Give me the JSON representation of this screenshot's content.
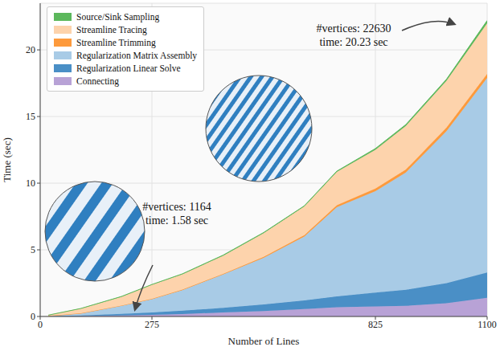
{
  "chart_data": {
    "type": "area",
    "stacked": true,
    "x_label": "Number of Lines",
    "y_label": "Time (sec)",
    "x": [
      20,
      100,
      200,
      275,
      350,
      450,
      550,
      650,
      730,
      825,
      900,
      1000,
      1100
    ],
    "xlim": [
      0,
      1100
    ],
    "xticks": [
      0,
      275,
      825,
      1100
    ],
    "ylim": [
      0,
      23.5
    ],
    "yticks": [
      0,
      5,
      10,
      15,
      20
    ],
    "grid": true,
    "legend": "upper left",
    "series": [
      {
        "name": "Connecting",
        "color": "#b8a2d6",
        "values": [
          0.01,
          0.03,
          0.08,
          0.12,
          0.18,
          0.3,
          0.4,
          0.55,
          0.7,
          0.75,
          0.8,
          1.0,
          1.4
        ]
      },
      {
        "name": "Regularization Linear Solve",
        "color": "#4a8fc6",
        "values": [
          0.01,
          0.05,
          0.12,
          0.18,
          0.25,
          0.35,
          0.5,
          0.65,
          0.8,
          1.05,
          1.2,
          1.5,
          1.9
        ]
      },
      {
        "name": "Regularization Matrix Assembly",
        "color": "#a8cbe6",
        "values": [
          0.02,
          0.15,
          0.6,
          1.0,
          1.55,
          2.5,
          3.5,
          4.8,
          6.7,
          7.6,
          8.8,
          11.4,
          14.6
        ]
      },
      {
        "name": "Streamline Trimming",
        "color": "#fd9a3c",
        "values": [
          0.0,
          0.01,
          0.02,
          0.03,
          0.04,
          0.05,
          0.07,
          0.1,
          0.15,
          0.2,
          0.22,
          0.28,
          0.3
        ]
      },
      {
        "name": "Streamline Tracing",
        "color": "#fdd3ac",
        "values": [
          0.06,
          0.35,
          0.65,
          1.05,
          1.15,
          1.35,
          1.78,
          2.15,
          2.5,
          2.9,
          3.28,
          3.5,
          3.8
        ]
      },
      {
        "name": "Source/Sink Sampling",
        "color": "#5cb85c",
        "values": [
          0.0,
          0.01,
          0.03,
          0.02,
          0.03,
          0.05,
          0.05,
          0.05,
          0.05,
          0.1,
          0.1,
          0.12,
          0.2
        ]
      }
    ],
    "annotations": [
      {
        "lines": [
          "#vertices: 1164",
          "time: 1.58 sec"
        ]
      },
      {
        "lines": [
          "#vertices: 22630",
          "time: 20.23 sec"
        ]
      }
    ]
  }
}
